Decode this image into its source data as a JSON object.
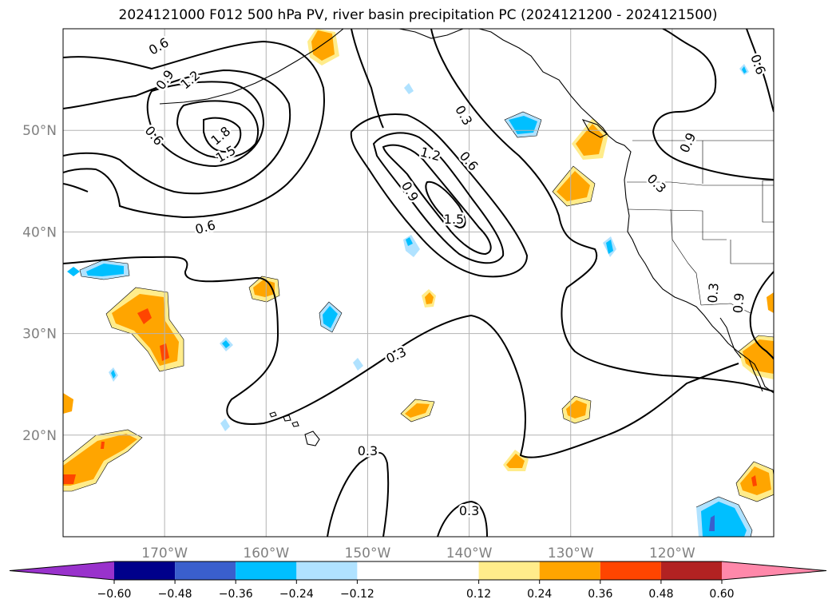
{
  "title": "2024121000 F012 500 hPa PV, river basin precipitation PC (2024121200 - 2024121500)",
  "map": {
    "lon_range": [
      -180,
      -110
    ],
    "lat_range": [
      10,
      60
    ],
    "lat_ticks": [
      {
        "value": 50,
        "label": "50°N"
      },
      {
        "value": 40,
        "label": "40°N"
      },
      {
        "value": 30,
        "label": "30°N"
      },
      {
        "value": 20,
        "label": "20°N"
      }
    ],
    "lon_ticks": [
      {
        "value": -170,
        "label": "170°W"
      },
      {
        "value": -160,
        "label": "160°W"
      },
      {
        "value": -150,
        "label": "150°W"
      },
      {
        "value": -140,
        "label": "140°W"
      },
      {
        "value": -130,
        "label": "130°W"
      },
      {
        "value": -120,
        "label": "120°W"
      }
    ],
    "contour_labels": [
      {
        "text": "0.6",
        "lon": -170.6,
        "lat": 58.3,
        "rot": -30
      },
      {
        "text": "0.9",
        "lon": -170.0,
        "lat": 55.0,
        "rot": -55
      },
      {
        "text": "1.2",
        "lon": -167.5,
        "lat": 55.0,
        "rot": -40
      },
      {
        "text": "0.6",
        "lon": -171.0,
        "lat": 49.5,
        "rot": 50
      },
      {
        "text": "1.8",
        "lon": -164.5,
        "lat": 49.5,
        "rot": -40
      },
      {
        "text": "1.5",
        "lon": -164.0,
        "lat": 47.7,
        "rot": -30
      },
      {
        "text": "0.6",
        "lon": -166.0,
        "lat": 40.5,
        "rot": -15
      },
      {
        "text": "0.3",
        "lon": -140.5,
        "lat": 51.5,
        "rot": 60
      },
      {
        "text": "1.2",
        "lon": -143.8,
        "lat": 47.7,
        "rot": 15
      },
      {
        "text": "0.6",
        "lon": -140.0,
        "lat": 47.0,
        "rot": 50
      },
      {
        "text": "0.9",
        "lon": -145.8,
        "lat": 44.0,
        "rot": 60
      },
      {
        "text": "1.5",
        "lon": -141.5,
        "lat": 41.3,
        "rot": 0
      },
      {
        "text": "0.3",
        "lon": -121.5,
        "lat": 44.8,
        "rot": 45
      },
      {
        "text": "0.9",
        "lon": -118.5,
        "lat": 48.8,
        "rot": -65
      },
      {
        "text": "0.6",
        "lon": -111.5,
        "lat": 56.5,
        "rot": 70
      },
      {
        "text": "0.3",
        "lon": -116.0,
        "lat": 34.0,
        "rot": -85
      },
      {
        "text": "0.9",
        "lon": -113.5,
        "lat": 33.0,
        "rot": -85
      },
      {
        "text": "0.3",
        "lon": -147.2,
        "lat": 27.9,
        "rot": -25
      },
      {
        "text": "0.3",
        "lon": -150.0,
        "lat": 18.5,
        "rot": 0
      },
      {
        "text": "0.3",
        "lon": -140.0,
        "lat": 12.6,
        "rot": 0
      }
    ]
  },
  "colorbar": {
    "min_color": "#9932cc",
    "max_color": "#ff88aa",
    "bins": [
      {
        "from": -0.6,
        "to": -0.48,
        "color": "#00008b"
      },
      {
        "from": -0.48,
        "to": -0.36,
        "color": "#3a5fcd"
      },
      {
        "from": -0.36,
        "to": -0.24,
        "color": "#00bfff"
      },
      {
        "from": -0.24,
        "to": -0.12,
        "color": "#b0e2ff"
      },
      {
        "from": -0.12,
        "to": 0.12,
        "color": "#ffffff"
      },
      {
        "from": 0.12,
        "to": 0.24,
        "color": "#ffec8b"
      },
      {
        "from": 0.24,
        "to": 0.36,
        "color": "#ffa500"
      },
      {
        "from": 0.36,
        "to": 0.48,
        "color": "#ff4500"
      },
      {
        "from": 0.48,
        "to": 0.6,
        "color": "#b22222"
      }
    ],
    "ticks": [
      "−0.60",
      "−0.48",
      "−0.36",
      "−0.24",
      "−0.12",
      "0.12",
      "0.24",
      "0.36",
      "0.48",
      "0.60"
    ]
  }
}
